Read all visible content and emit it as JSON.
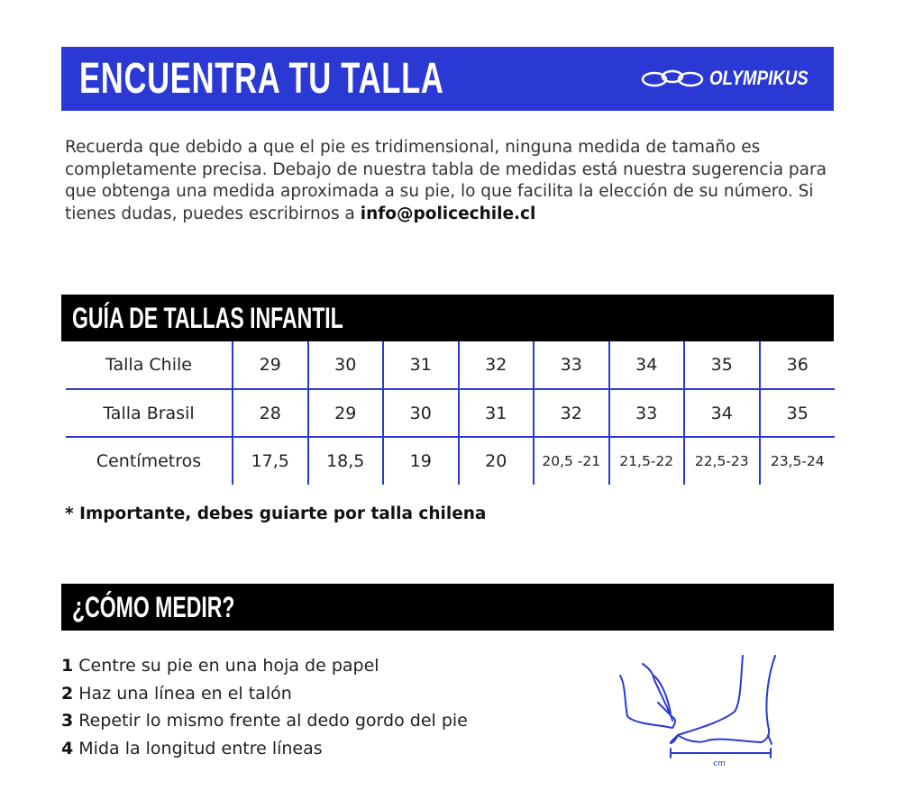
{
  "header": {
    "title": "ENCUENTRA TU TALLA",
    "brand": "OLYMPIKUS",
    "brand_color": "#2a39d4"
  },
  "intro": {
    "text": "Recuerda que debido a que el pie es tridimensional, ninguna medida de tamaño es completamente precisa. Debajo de nuestra tabla de medidas está nuestra sugerencia para que obtenga una medida aproximada a su pie, lo que facilita la elección de su número. Si tienes dudas, puedes escribirnos a ",
    "email": "info@policechile.cl"
  },
  "size_guide": {
    "title": "GUÍA DE TALLAS INFANTIL",
    "rows": [
      {
        "label": "Talla Chile",
        "values": [
          "29",
          "30",
          "31",
          "32",
          "33",
          "34",
          "35",
          "36"
        ]
      },
      {
        "label": "Talla Brasil",
        "values": [
          "28",
          "29",
          "30",
          "31",
          "32",
          "33",
          "34",
          "35"
        ]
      },
      {
        "label": "Centímetros",
        "values": [
          "17,5",
          "18,5",
          "19",
          "20",
          "20,5 -21",
          "21,5-22",
          "22,5-23",
          "23,5-24"
        ]
      }
    ],
    "note": "* Importante, debes guiarte por talla chilena"
  },
  "how_to": {
    "title": "¿CÓMO MEDIR?",
    "steps": [
      {
        "n": "1",
        "text": " Centre su pie en una hoja de papel"
      },
      {
        "n": "2",
        "text": " Haz una línea en el talón"
      },
      {
        "n": "3",
        "text": " Repetir lo mismo frente al dedo gordo del pie"
      },
      {
        "n": "4",
        "text": " Mida la longitud entre líneas"
      }
    ],
    "illustration_label": "cm"
  }
}
